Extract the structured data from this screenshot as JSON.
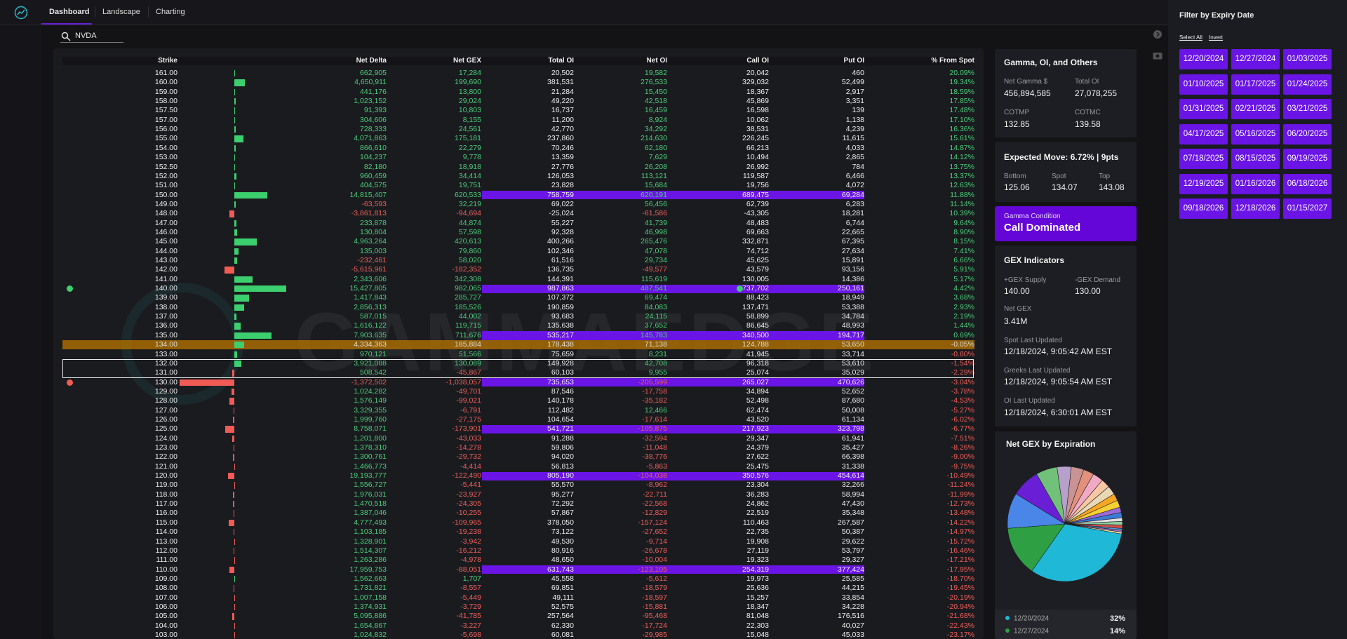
{
  "nav": {
    "items": [
      "Dashboard",
      "Landscape",
      "Charting"
    ]
  },
  "search": "NVDA",
  "watermark": "GAMMAEDGE",
  "table": {
    "header": [
      "Strike",
      "Net Delta",
      "Net GEX",
      "Total OI",
      "Net OI",
      "Call OI",
      "Put OI",
      "% From Spot"
    ],
    "rows": [
      [
        "161.00",
        "662,905",
        "17,284",
        "20,502",
        "19,582",
        "20,042",
        "460",
        "20.09%"
      ],
      [
        "160.00",
        "4,650,911",
        "199,690",
        "381,531",
        "276,533",
        "329,032",
        "52,499",
        "19.34%"
      ],
      [
        "159.00",
        "441,176",
        "13,800",
        "21,284",
        "15,450",
        "18,367",
        "2,917",
        "18.59%"
      ],
      [
        "158.00",
        "1,023,152",
        "29,024",
        "49,220",
        "42,518",
        "45,869",
        "3,351",
        "17.85%"
      ],
      [
        "157.50",
        "91,393",
        "10,803",
        "16,737",
        "16,459",
        "16,598",
        "139",
        "17.48%"
      ],
      [
        "157.00",
        "304,606",
        "8,155",
        "11,200",
        "8,924",
        "10,062",
        "1,138",
        "17.10%"
      ],
      [
        "156.00",
        "728,333",
        "24,561",
        "42,770",
        "34,292",
        "38,531",
        "4,239",
        "16.36%"
      ],
      [
        "155.00",
        "4,071,863",
        "175,181",
        "237,860",
        "214,630",
        "226,245",
        "11,615",
        "15.61%"
      ],
      [
        "154.00",
        "866,610",
        "22,279",
        "70,246",
        "62,180",
        "66,213",
        "4,033",
        "14.87%"
      ],
      [
        "153.00",
        "104,237",
        "9,778",
        "13,359",
        "7,629",
        "10,494",
        "2,865",
        "14.12%"
      ],
      [
        "152.50",
        "82,180",
        "18,918",
        "27,776",
        "26,208",
        "26,992",
        "784",
        "13.75%"
      ],
      [
        "152.00",
        "960,459",
        "34,414",
        "126,053",
        "113,121",
        "119,587",
        "6,466",
        "13.37%"
      ],
      [
        "151.00",
        "404,575",
        "19,751",
        "23,828",
        "15,684",
        "19,756",
        "4,072",
        "12.63%"
      ],
      [
        "150.00",
        "14,815,407",
        "620,533",
        "758,759",
        "620,191",
        "689,475",
        "69,284",
        "11.88%"
      ],
      [
        "149.00",
        "-63,593",
        "32,219",
        "69,022",
        "56,456",
        "62,739",
        "6,283",
        "11.14%"
      ],
      [
        "148.00",
        "-3,861,813",
        "-94,694",
        "-25,024",
        "-61,586",
        "-43,305",
        "18,281",
        "10.39%"
      ],
      [
        "147.00",
        "233,878",
        "44,874",
        "55,227",
        "41,739",
        "48,483",
        "6,744",
        "9.64%"
      ],
      [
        "146.00",
        "130,804",
        "57,598",
        "92,328",
        "46,998",
        "69,663",
        "22,665",
        "8.90%"
      ],
      [
        "145.00",
        "4,963,264",
        "420,613",
        "400,266",
        "265,476",
        "332,871",
        "67,395",
        "8.15%"
      ],
      [
        "144.00",
        "135,003",
        "79,860",
        "102,346",
        "47,078",
        "74,712",
        "27,634",
        "7.41%"
      ],
      [
        "143.00",
        "-232,461",
        "58,020",
        "61,516",
        "29,734",
        "45,625",
        "15,891",
        "6.66%"
      ],
      [
        "142.00",
        "-5,615,961",
        "-182,352",
        "136,735",
        "-49,577",
        "43,579",
        "93,156",
        "5.91%"
      ],
      [
        "141.00",
        "2,343,606",
        "342,308",
        "144,391",
        "115,619",
        "130,005",
        "14,386",
        "5.17%"
      ],
      [
        "140.00",
        "15,427,805",
        "982,065",
        "987,863",
        "487,541",
        "737,702",
        "250,161",
        "4.42%"
      ],
      [
        "139.00",
        "1,417,843",
        "285,727",
        "107,372",
        "69,474",
        "88,423",
        "18,949",
        "3.68%"
      ],
      [
        "138.00",
        "2,856,313",
        "185,526",
        "190,859",
        "84,083",
        "137,471",
        "53,388",
        "2.93%"
      ],
      [
        "137.00",
        "587,015",
        "44,002",
        "93,683",
        "24,115",
        "58,899",
        "34,784",
        "2.19%"
      ],
      [
        "136.00",
        "1,616,122",
        "119,715",
        "135,638",
        "37,652",
        "86,645",
        "48,993",
        "1.44%"
      ],
      [
        "135.00",
        "7,903,635",
        "711,676",
        "535,217",
        "145,783",
        "340,500",
        "194,717",
        "0.69%"
      ],
      [
        "134.00",
        "4,334,363",
        "185,884",
        "178,438",
        "71,138",
        "124,788",
        "53,650",
        "-0.05%"
      ],
      [
        "133.00",
        "970,121",
        "51,566",
        "75,659",
        "8,231",
        "41,945",
        "33,714",
        "-0.80%"
      ],
      [
        "132.00",
        "3,921,088",
        "130,089",
        "149,928",
        "42,708",
        "96,318",
        "53,610",
        "-1.54%"
      ],
      [
        "131.00",
        "508,542",
        "-45,867",
        "60,103",
        "9,955",
        "25,074",
        "35,029",
        "-2.29%"
      ],
      [
        "130.00",
        "-1,372,502",
        "-1,038,057",
        "735,653",
        "-205,599",
        "265,027",
        "470,626",
        "-3.04%"
      ],
      [
        "129.00",
        "1,024,282",
        "-49,701",
        "87,546",
        "-17,758",
        "34,894",
        "52,652",
        "-3.78%"
      ],
      [
        "128.00",
        "1,576,149",
        "-99,021",
        "140,178",
        "-35,182",
        "52,498",
        "87,680",
        "-4.53%"
      ],
      [
        "127.00",
        "3,329,355",
        "-6,791",
        "112,482",
        "12,466",
        "62,474",
        "50,008",
        "-5.27%"
      ],
      [
        "126.00",
        "1,999,760",
        "-27,175",
        "104,654",
        "-17,614",
        "43,520",
        "61,134",
        "-6.02%"
      ],
      [
        "125.00",
        "8,758,071",
        "-173,901",
        "541,721",
        "-105,875",
        "217,923",
        "323,798",
        "-6.77%"
      ],
      [
        "124.00",
        "1,201,800",
        "-43,033",
        "91,288",
        "-32,594",
        "29,347",
        "61,941",
        "-7.51%"
      ],
      [
        "123.00",
        "1,378,310",
        "-14,278",
        "59,806",
        "-11,048",
        "24,379",
        "35,427",
        "-8.26%"
      ],
      [
        "122.00",
        "1,300,761",
        "-29,732",
        "94,020",
        "-38,776",
        "27,622",
        "66,398",
        "-9.00%"
      ],
      [
        "121.00",
        "1,466,773",
        "-4,414",
        "56,813",
        "-5,863",
        "25,475",
        "31,338",
        "-9.75%"
      ],
      [
        "120.00",
        "19,193,777",
        "-122,490",
        "805,190",
        "-104,038",
        "350,576",
        "454,614",
        "-10.49%"
      ],
      [
        "119.00",
        "1,556,727",
        "-5,441",
        "55,570",
        "-8,962",
        "23,304",
        "32,266",
        "-11.24%"
      ],
      [
        "118.00",
        "1,976,031",
        "-23,927",
        "95,277",
        "-22,711",
        "36,283",
        "58,994",
        "-11.99%"
      ],
      [
        "117.00",
        "1,470,518",
        "-24,305",
        "72,292",
        "-22,568",
        "24,862",
        "47,430",
        "-12.73%"
      ],
      [
        "116.00",
        "1,387,046",
        "-10,255",
        "57,867",
        "-12,829",
        "22,519",
        "35,348",
        "-13.48%"
      ],
      [
        "115.00",
        "4,777,493",
        "-109,965",
        "378,050",
        "-157,124",
        "110,463",
        "267,587",
        "-14.22%"
      ],
      [
        "114.00",
        "1,103,185",
        "-19,238",
        "73,122",
        "-27,652",
        "22,735",
        "50,387",
        "-14.97%"
      ],
      [
        "113.00",
        "1,328,901",
        "-3,942",
        "49,530",
        "-9,714",
        "19,908",
        "29,622",
        "-15.72%"
      ],
      [
        "112.00",
        "1,514,307",
        "-16,212",
        "80,916",
        "-26,678",
        "27,119",
        "53,797",
        "-16.46%"
      ],
      [
        "111.00",
        "1,263,286",
        "-4,978",
        "48,650",
        "-10,004",
        "19,323",
        "29,327",
        "-17.21%"
      ],
      [
        "110.00",
        "17,959,753",
        "-88,051",
        "631,743",
        "-123,105",
        "254,319",
        "377,424",
        "-17.95%"
      ],
      [
        "109.00",
        "1,562,663",
        "1,707",
        "45,558",
        "-5,612",
        "19,973",
        "25,585",
        "-18.70%"
      ],
      [
        "108.00",
        "1,731,821",
        "-8,557",
        "69,851",
        "-18,579",
        "25,636",
        "44,215",
        "-19.45%"
      ],
      [
        "107.00",
        "1,007,158",
        "-5,449",
        "49,111",
        "-18,597",
        "15,257",
        "33,854",
        "-20.19%"
      ],
      [
        "106.00",
        "1,374,931",
        "-3,729",
        "52,575",
        "-15,881",
        "18,347",
        "34,228",
        "-20.94%"
      ],
      [
        "105.00",
        "5,095,886",
        "-41,785",
        "257,564",
        "-95,468",
        "81,048",
        "176,516",
        "-21.68%"
      ],
      [
        "104.00",
        "1,654,867",
        "-3,227",
        "62,330",
        "-17,724",
        "22,303",
        "40,027",
        "-22.43%"
      ],
      [
        "103.00",
        "1,024,832",
        "-5,698",
        "60,081",
        "-29,985",
        "15,048",
        "45,033",
        "-23.17%"
      ]
    ]
  },
  "gamma_card": {
    "title": "Gamma, OI, and Others",
    "items": [
      {
        "label": "Net Gamma $",
        "value": "456,894,585"
      },
      {
        "label": "Total OI",
        "value": "27,078,255"
      },
      {
        "label": "COTMP",
        "value": "132.85"
      },
      {
        "label": "COTMC",
        "value": "139.58"
      }
    ]
  },
  "expected_move": {
    "title": "Expected Move: 6.72% | 9pts",
    "items": [
      {
        "label": "Bottom",
        "value": "125.06"
      },
      {
        "label": "Spot",
        "value": "134.07"
      },
      {
        "label": "Top",
        "value": "143.08"
      }
    ]
  },
  "gamma_condition": {
    "label": "Gamma Condition",
    "value": "Call Dominated"
  },
  "gex_indicators": {
    "title": "GEX Indicators",
    "supply_label": "+GEX Supply",
    "supply": "140.00",
    "demand_label": "-GEX Demand",
    "demand": "130.00",
    "net_label": "Net GEX",
    "net": "3.41M",
    "updates": [
      {
        "label": "Spot Last Updated",
        "value": "12/18/2024, 9:05:42 AM EST"
      },
      {
        "label": "Greeks Last Updated",
        "value": "12/18/2024, 9:05:54 AM EST"
      },
      {
        "label": "OI Last Updated",
        "value": "12/18/2024, 6:30:01 AM EST"
      }
    ]
  },
  "pie": {
    "type": "pie",
    "title": "Net GEX by Expiration",
    "categories": [
      "12/20/2024",
      "12/27/2024",
      null,
      null,
      null,
      null,
      null,
      null,
      null,
      null,
      null,
      null,
      null,
      null,
      null,
      null,
      null,
      null,
      null,
      null,
      null
    ],
    "values": [
      32,
      14,
      10,
      8,
      6,
      4,
      3.5,
      3,
      3,
      2.5,
      2.5,
      2,
      2,
      1.5,
      1.5,
      1,
      1,
      1,
      0.5,
      0.5,
      0.5
    ],
    "value_labels": [
      "32%",
      "14%",
      null,
      null,
      null,
      null,
      null,
      null,
      null,
      null,
      null,
      null,
      null,
      null,
      null,
      null,
      null,
      null,
      null,
      null,
      null
    ],
    "colors": [
      "#1fb8d6",
      "#2ea043",
      "#4a86e8",
      "#6a1fd6",
      "#72c17a",
      "#b7a0c9",
      "#c99393",
      "#e3917c",
      "#f0aac4",
      "#f6c7a2",
      "#e9d8b4",
      "#f5a623",
      "#f6d033",
      "#9b6ad6",
      "#3a7bd5",
      "#e0e0e0",
      "#8cd0a0",
      "#d05050",
      "#50a0e0",
      "#b070d0",
      "#f0f0a0"
    ]
  },
  "filter": {
    "title": "Filter by Expiry Date",
    "select_all": "Select All",
    "invert": "Invert",
    "dates": [
      "12/20/2024",
      "12/27/2024",
      "01/03/2025",
      "01/10/2025",
      "01/17/2025",
      "01/24/2025",
      "01/31/2025",
      "02/21/2025",
      "03/21/2025",
      "04/17/2025",
      "05/16/2025",
      "06/20/2025",
      "07/18/2025",
      "08/15/2025",
      "09/19/2025",
      "12/19/2025",
      "01/16/2026",
      "06/18/2026",
      "09/18/2026",
      "12/18/2026",
      "01/15/2027"
    ]
  }
}
